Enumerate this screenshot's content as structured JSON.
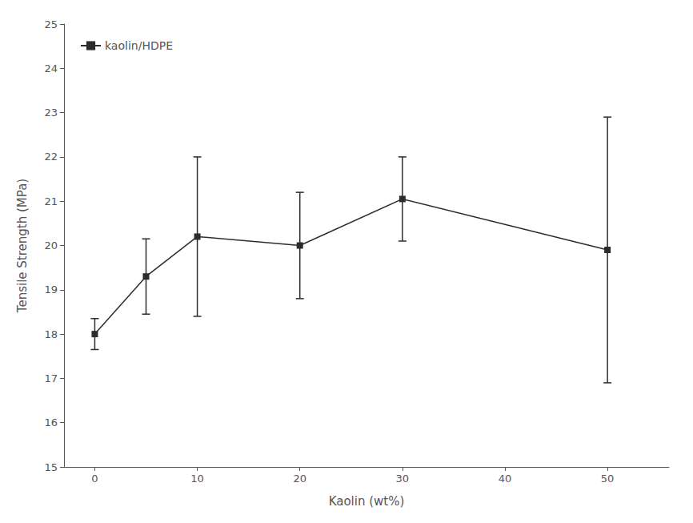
{
  "chart_data": {
    "type": "line",
    "xlabel": "Kaolin (wt%)",
    "ylabel": "Tensile Strength (MPa)",
    "x": [
      0,
      5,
      10,
      20,
      30,
      50
    ],
    "series": [
      {
        "name": "kaolin/HDPE",
        "color": "#2c2c2c",
        "marker": "square",
        "values": [
          18.0,
          19.3,
          20.2,
          20.0,
          21.05,
          19.9
        ],
        "yerr": [
          0.35,
          0.85,
          1.8,
          1.2,
          0.95,
          3.0
        ]
      }
    ],
    "xlim": [
      -3,
      56
    ],
    "ylim": [
      15,
      25
    ],
    "xticks": [
      0,
      10,
      20,
      30,
      40,
      50
    ],
    "yticks": [
      15,
      16,
      17,
      18,
      19,
      20,
      21,
      22,
      23,
      24,
      25
    ],
    "grid": false,
    "legend": "upper left"
  }
}
